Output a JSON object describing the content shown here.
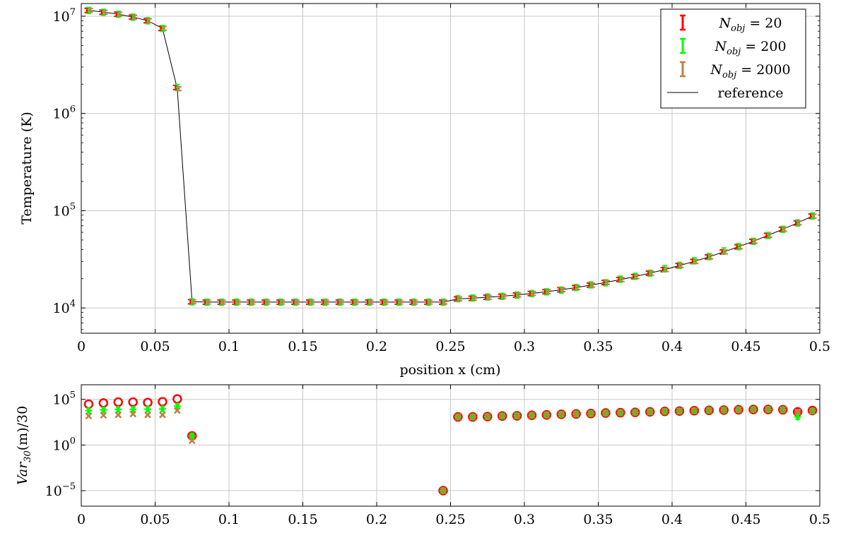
{
  "chart_data": [
    {
      "type": "line",
      "xlabel": "position x (cm)",
      "ylabel": "Temperature (K)",
      "xlim": [
        0,
        0.5
      ],
      "ylim": [
        5500,
        13500000
      ],
      "yscale": "log",
      "grid": true,
      "legend_position": "top-right",
      "x_ticks": [
        {
          "value": 0,
          "label": "0"
        },
        {
          "value": 0.05,
          "label": "0.05"
        },
        {
          "value": 0.1,
          "label": "0.1"
        },
        {
          "value": 0.15,
          "label": "0.15"
        },
        {
          "value": 0.2,
          "label": "0.2"
        },
        {
          "value": 0.25,
          "label": "0.25"
        },
        {
          "value": 0.3,
          "label": "0.3"
        },
        {
          "value": 0.35,
          "label": "0.35"
        },
        {
          "value": 0.4,
          "label": "0.4"
        },
        {
          "value": 0.45,
          "label": "0.45"
        },
        {
          "value": 0.5,
          "label": "0.5"
        }
      ],
      "y_ticks": [
        {
          "value": 10000,
          "base": "10",
          "exp": "4"
        },
        {
          "value": 100000,
          "base": "10",
          "exp": "5"
        },
        {
          "value": 1000000,
          "base": "10",
          "exp": "6"
        },
        {
          "value": 10000000,
          "base": "10",
          "exp": "7"
        }
      ],
      "legend": [
        {
          "name_main": "N",
          "name_sub": "obj",
          "name_rest": " = 20",
          "color": "#ff0000",
          "kind": "errorbar"
        },
        {
          "name_main": "N",
          "name_sub": "obj",
          "name_rest": " = 200",
          "color": "#00ff00",
          "kind": "errorbar"
        },
        {
          "name_main": "N",
          "name_sub": "obj",
          "name_rest": " = 2000",
          "color": "#bf8040",
          "kind": "errorbar"
        },
        {
          "name_main": "reference",
          "name_sub": "",
          "name_rest": "",
          "color": "#000000",
          "kind": "line"
        }
      ],
      "reference": {
        "x": [
          0.005,
          0.015,
          0.025,
          0.035,
          0.045,
          0.055,
          0.065,
          0.075,
          0.085,
          0.095,
          0.105,
          0.115,
          0.125,
          0.135,
          0.145,
          0.155,
          0.165,
          0.175,
          0.185,
          0.195,
          0.205,
          0.215,
          0.225,
          0.235,
          0.245,
          0.255,
          0.265,
          0.275,
          0.285,
          0.295,
          0.305,
          0.315,
          0.325,
          0.335,
          0.345,
          0.355,
          0.365,
          0.375,
          0.385,
          0.395,
          0.405,
          0.415,
          0.425,
          0.435,
          0.445,
          0.455,
          0.465,
          0.475,
          0.485,
          0.495
        ],
        "y": [
          11500000,
          11000000,
          10500000,
          9800000,
          9000000,
          7500000,
          1800000,
          11600,
          11500,
          11500,
          11500,
          11500,
          11500,
          11500,
          11500,
          11500,
          11500,
          11500,
          11500,
          11500,
          11500,
          11500,
          11500,
          11500,
          11500,
          12400,
          12600,
          12900,
          13200,
          13600,
          14100,
          14700,
          15400,
          16200,
          17200,
          18300,
          19600,
          21000,
          22800,
          24800,
          27300,
          30100,
          33500,
          37700,
          42600,
          48500,
          55800,
          64500,
          75000,
          88000
        ]
      },
      "series": [
        {
          "name": "N_obj = 20",
          "color": "#ff0000",
          "rel_err": 0.05,
          "x_offset": -0.0012,
          "x": [
            0.005,
            0.015,
            0.025,
            0.035,
            0.045,
            0.055,
            0.065,
            0.075,
            0.085,
            0.095,
            0.105,
            0.115,
            0.125,
            0.135,
            0.145,
            0.155,
            0.165,
            0.175,
            0.185,
            0.195,
            0.205,
            0.215,
            0.225,
            0.235,
            0.245,
            0.255,
            0.265,
            0.275,
            0.285,
            0.295,
            0.305,
            0.315,
            0.325,
            0.335,
            0.345,
            0.355,
            0.365,
            0.375,
            0.385,
            0.395,
            0.405,
            0.415,
            0.425,
            0.435,
            0.445,
            0.455,
            0.465,
            0.475,
            0.485,
            0.495
          ],
          "y": [
            11500000,
            11000000,
            10500000,
            9800000,
            9000000,
            7500000,
            1850000,
            11600,
            11500,
            11500,
            11500,
            11500,
            11500,
            11500,
            11500,
            11500,
            11500,
            11500,
            11500,
            11500,
            11500,
            11500,
            11500,
            11500,
            11500,
            12400,
            12600,
            12900,
            13200,
            13600,
            14100,
            14700,
            15400,
            16200,
            17200,
            18300,
            19600,
            21000,
            22800,
            24800,
            27300,
            30100,
            33500,
            37700,
            42600,
            48500,
            55800,
            64500,
            75000,
            88000
          ]
        },
        {
          "name": "N_obj = 200",
          "color": "#00ff00",
          "rel_err": 0.07,
          "x_offset": 0.0,
          "x": [
            0.005,
            0.015,
            0.025,
            0.035,
            0.045,
            0.055,
            0.065,
            0.075,
            0.085,
            0.095,
            0.105,
            0.115,
            0.125,
            0.135,
            0.145,
            0.155,
            0.165,
            0.175,
            0.185,
            0.195,
            0.205,
            0.215,
            0.225,
            0.235,
            0.245,
            0.255,
            0.265,
            0.275,
            0.285,
            0.295,
            0.305,
            0.315,
            0.325,
            0.335,
            0.345,
            0.355,
            0.365,
            0.375,
            0.385,
            0.395,
            0.405,
            0.415,
            0.425,
            0.435,
            0.445,
            0.455,
            0.465,
            0.475,
            0.485,
            0.495
          ],
          "y": [
            11500000,
            11000000,
            10500000,
            9800000,
            9000000,
            7500000,
            1850000,
            11600,
            11500,
            11500,
            11500,
            11500,
            11500,
            11500,
            11500,
            11500,
            11500,
            11500,
            11500,
            11500,
            11500,
            11500,
            11500,
            11500,
            11500,
            12500,
            12700,
            13000,
            13200,
            13600,
            14100,
            14700,
            15300,
            16300,
            17300,
            18200,
            19800,
            21200,
            22800,
            25400,
            27500,
            30600,
            33800,
            38700,
            42800,
            48500,
            55800,
            64500,
            75000,
            88500
          ]
        },
        {
          "name": "N_obj = 2000",
          "color": "#bf8040",
          "rel_err": 0.045,
          "x_offset": 0.0012,
          "x": [
            0.005,
            0.015,
            0.025,
            0.035,
            0.045,
            0.055,
            0.065,
            0.075,
            0.085,
            0.095,
            0.105,
            0.115,
            0.125,
            0.135,
            0.145,
            0.155,
            0.165,
            0.175,
            0.185,
            0.195,
            0.205,
            0.215,
            0.225,
            0.235,
            0.245,
            0.255,
            0.265,
            0.275,
            0.285,
            0.295,
            0.305,
            0.315,
            0.325,
            0.335,
            0.345,
            0.355,
            0.365,
            0.375,
            0.385,
            0.395,
            0.405,
            0.415,
            0.425,
            0.435,
            0.445,
            0.455,
            0.465,
            0.475,
            0.485,
            0.495
          ],
          "y": [
            11500000,
            11000000,
            10500000,
            9800000,
            9000000,
            7500000,
            1800000,
            11600,
            11500,
            11500,
            11500,
            11500,
            11500,
            11500,
            11500,
            11500,
            11500,
            11500,
            11500,
            11500,
            11500,
            11500,
            11500,
            11500,
            11500,
            12400,
            12600,
            12900,
            13200,
            13600,
            14100,
            14700,
            15400,
            16200,
            17200,
            18300,
            19600,
            21000,
            22800,
            24800,
            27300,
            30100,
            33500,
            37700,
            42600,
            48500,
            55800,
            64500,
            75000,
            88000
          ]
        }
      ]
    },
    {
      "type": "scatter",
      "xlabel": "",
      "ylabel_main": "Var",
      "ylabel_sub": "30",
      "ylabel_rest": "(m)/30",
      "xlim": [
        0,
        0.5
      ],
      "ylim": [
        2e-07,
        4000000
      ],
      "yscale": "log",
      "grid": true,
      "x_ticks": [
        {
          "value": 0,
          "label": "0"
        },
        {
          "value": 0.05,
          "label": "0.05"
        },
        {
          "value": 0.1,
          "label": "0.1"
        },
        {
          "value": 0.15,
          "label": "0.15"
        },
        {
          "value": 0.2,
          "label": "0.2"
        },
        {
          "value": 0.25,
          "label": "0.25"
        },
        {
          "value": 0.3,
          "label": "0.3"
        },
        {
          "value": 0.35,
          "label": "0.35"
        },
        {
          "value": 0.4,
          "label": "0.4"
        },
        {
          "value": 0.45,
          "label": "0.45"
        },
        {
          "value": 0.5,
          "label": "0.5"
        }
      ],
      "y_ticks": [
        {
          "value": 1e-05,
          "base": "10",
          "exp": "−5"
        },
        {
          "value": 1,
          "base": "10",
          "exp": "0"
        },
        {
          "value": 100000,
          "base": "10",
          "exp": "5"
        }
      ],
      "series": [
        {
          "name": "N_obj = 20",
          "color": "#ff0000",
          "marker": "circle",
          "x": [
            0.005,
            0.015,
            0.025,
            0.035,
            0.045,
            0.055,
            0.065,
            0.075,
            0.245,
            0.255,
            0.265,
            0.275,
            0.285,
            0.295,
            0.305,
            0.315,
            0.325,
            0.335,
            0.345,
            0.355,
            0.365,
            0.375,
            0.385,
            0.395,
            0.405,
            0.415,
            0.425,
            0.435,
            0.445,
            0.455,
            0.465,
            0.475,
            0.485,
            0.495
          ],
          "y": [
            30000,
            40000,
            50000,
            50000,
            45000,
            55000,
            110000,
            10,
            1e-05,
            1200,
            1200,
            1300,
            1500,
            1600,
            1800,
            2000,
            2300,
            2500,
            2800,
            3200,
            3500,
            3800,
            4300,
            4800,
            5300,
            5800,
            6300,
            6800,
            7300,
            7800,
            7800,
            7300,
            4300,
            6000
          ]
        },
        {
          "name": "N_obj = 200",
          "color": "#00ff00",
          "marker": "asterisk",
          "x": [
            0.005,
            0.015,
            0.025,
            0.035,
            0.045,
            0.055,
            0.065,
            0.075,
            0.245,
            0.255,
            0.265,
            0.275,
            0.285,
            0.295,
            0.305,
            0.315,
            0.325,
            0.335,
            0.345,
            0.355,
            0.365,
            0.375,
            0.385,
            0.395,
            0.405,
            0.415,
            0.425,
            0.435,
            0.445,
            0.455,
            0.465,
            0.475,
            0.485,
            0.495
          ],
          "y": [
            6000,
            7000,
            8000,
            8000,
            8500,
            9000,
            18000,
            10,
            1e-05,
            1200,
            1200,
            1300,
            1500,
            1600,
            1800,
            2000,
            2300,
            2500,
            2800,
            3200,
            3500,
            3800,
            4300,
            4800,
            5300,
            5800,
            6300,
            6800,
            7300,
            7800,
            7800,
            7300,
            1200,
            5500
          ]
        },
        {
          "name": "N_obj = 2000",
          "color": "#bf8040",
          "marker": "cross",
          "x": [
            0.005,
            0.015,
            0.025,
            0.035,
            0.045,
            0.055,
            0.065,
            0.075,
            0.245,
            0.255,
            0.265,
            0.275,
            0.285,
            0.295,
            0.305,
            0.315,
            0.325,
            0.335,
            0.345,
            0.355,
            0.365,
            0.375,
            0.385,
            0.395,
            0.405,
            0.415,
            0.425,
            0.435,
            0.445,
            0.455,
            0.465,
            0.475,
            0.485,
            0.495
          ],
          "y": [
            1500,
            1800,
            2000,
            2500,
            2000,
            2000,
            6000,
            3,
            1e-05,
            1200,
            1200,
            1300,
            1500,
            1600,
            1800,
            2000,
            2300,
            2500,
            2800,
            3200,
            3500,
            3800,
            4300,
            4800,
            5300,
            5800,
            6300,
            6800,
            7300,
            7800,
            7800,
            7300,
            4300,
            5000
          ]
        }
      ]
    }
  ]
}
